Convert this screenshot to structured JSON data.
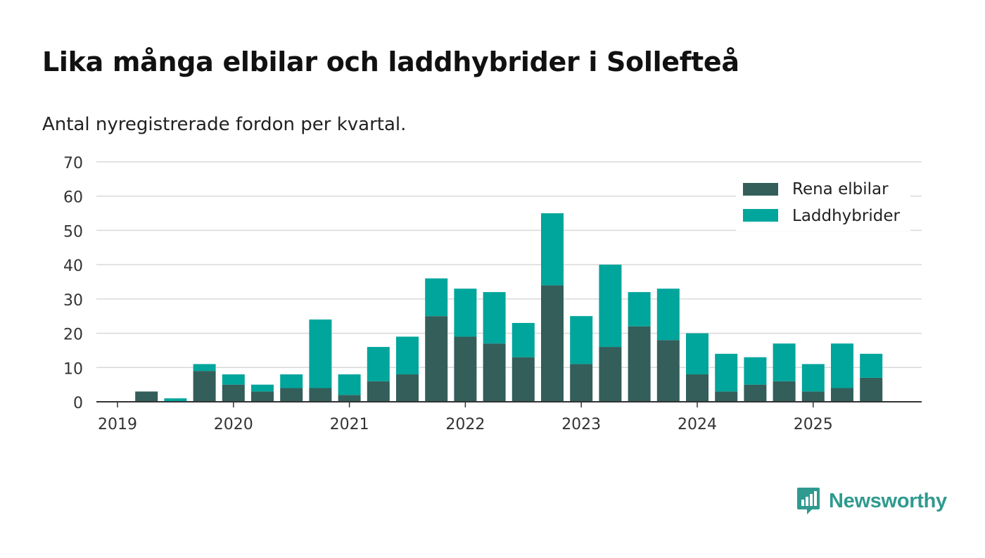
{
  "title": "Lika många elbilar och laddhybrider i Sollefteå",
  "subtitle": "Antal nyregistrerade fordon per kvartal.",
  "brand": {
    "name": "Newsworthy",
    "icon": "newsworthy-logo-icon"
  },
  "colors": {
    "elbilar": "#335e5a",
    "laddhybrider": "#00a59c",
    "grid": "#d9d9d9",
    "axis": "#333333",
    "text": "#333333",
    "brand": "#2f9a8f"
  },
  "chart_data": {
    "type": "bar",
    "stacked": true,
    "title": "Lika många elbilar och laddhybrider i Sollefteå",
    "subtitle": "Antal nyregistrerade fordon per kvartal.",
    "xlabel": "",
    "ylabel": "",
    "ylim": [
      0,
      70
    ],
    "yticks": [
      0,
      10,
      20,
      30,
      40,
      50,
      60,
      70
    ],
    "grid": true,
    "legend_position": "top-right",
    "categories": [
      "2019 Q1",
      "2019 Q2",
      "2019 Q3",
      "2019 Q4",
      "2020 Q1",
      "2020 Q2",
      "2020 Q3",
      "2020 Q4",
      "2021 Q1",
      "2021 Q2",
      "2021 Q3",
      "2021 Q4",
      "2022 Q1",
      "2022 Q2",
      "2022 Q3",
      "2022 Q4",
      "2023 Q1",
      "2023 Q2",
      "2023 Q3",
      "2023 Q4",
      "2024 Q1",
      "2024 Q2",
      "2024 Q3",
      "2024 Q4",
      "2025 Q1",
      "2025 Q2",
      "2025 Q3"
    ],
    "year_labels": [
      "2019",
      "2020",
      "2021",
      "2022",
      "2023",
      "2024",
      "2025"
    ],
    "series": [
      {
        "name": "Rena elbilar",
        "values": [
          0,
          3,
          0,
          9,
          5,
          3,
          4,
          4,
          2,
          6,
          8,
          25,
          19,
          17,
          13,
          34,
          11,
          16,
          22,
          18,
          8,
          3,
          5,
          6,
          3,
          4,
          7
        ]
      },
      {
        "name": "Laddhybrider",
        "values": [
          0,
          0,
          1,
          2,
          3,
          2,
          4,
          20,
          6,
          10,
          11,
          11,
          14,
          15,
          10,
          21,
          14,
          24,
          10,
          15,
          12,
          11,
          8,
          11,
          8,
          13,
          7
        ]
      }
    ]
  }
}
